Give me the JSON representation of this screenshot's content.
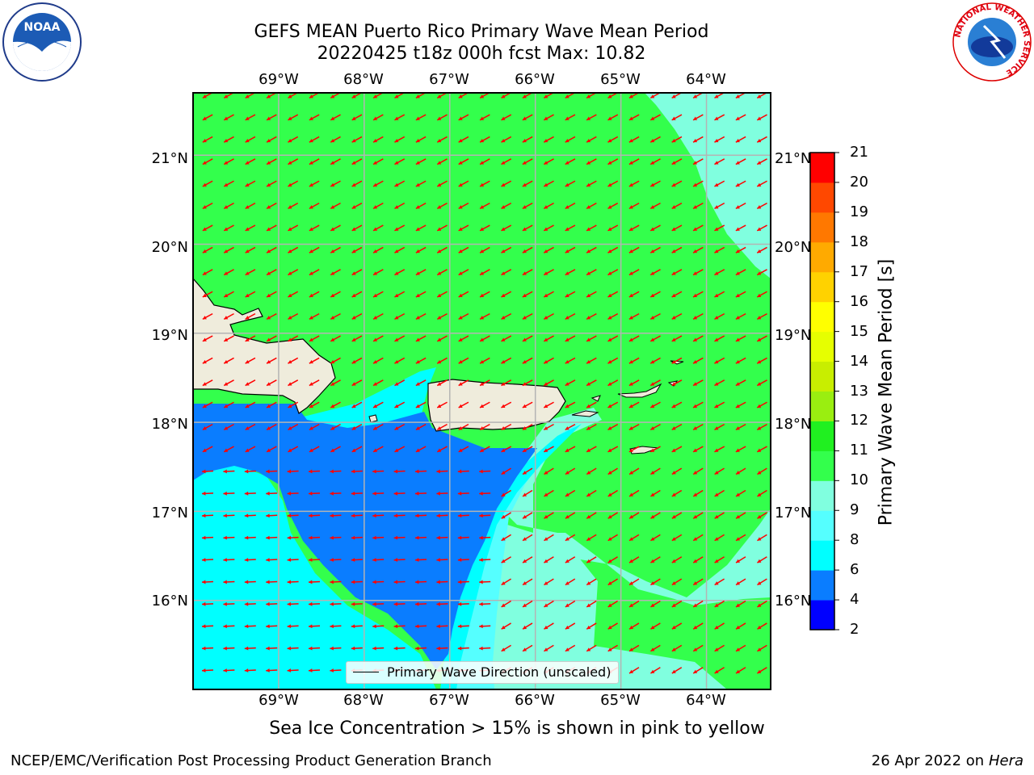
{
  "header": {
    "title_line1": "GEFS MEAN Puerto Rico Primary Wave Mean Period",
    "title_line2": "20220425 t18z 000h fcst   Max: 10.82"
  },
  "map": {
    "lon_labels": [
      "69°W",
      "68°W",
      "67°W",
      "66°W",
      "65°W",
      "64°W"
    ],
    "lat_labels": [
      "21°N",
      "20°N",
      "19°N",
      "18°N",
      "17°N",
      "16°N"
    ],
    "lon_range": [
      -70.0,
      -63.25
    ],
    "lat_range": [
      15.0,
      21.7
    ],
    "legend_label": "Primary Wave Direction (unscaled)",
    "colors": {
      "land": "#efecdc",
      "green_10_11": "#33ff4c",
      "aqua_9_10": "#80ffdf",
      "cyan_8_9": "#55ffff",
      "cyan_6_8": "#00ffff",
      "blue_4_6": "#0a7dff",
      "arrow": "#ff0000",
      "grid": "#b4b4b4"
    }
  },
  "colorbar": {
    "label": "Primary Wave Mean Period [s]",
    "ticks": [
      "2",
      "4",
      "6",
      "8",
      "9",
      "10",
      "11",
      "12",
      "13",
      "14",
      "15",
      "16",
      "17",
      "18",
      "19",
      "20",
      "21"
    ],
    "levels": [
      2,
      4,
      6,
      8,
      9,
      10,
      11,
      12,
      13,
      14,
      15,
      16,
      17,
      18,
      19,
      20,
      21
    ],
    "colors": [
      "#0000ff",
      "#0a7dff",
      "#00ffff",
      "#55ffff",
      "#80ffdf",
      "#33ff4c",
      "#20f020",
      "#9aee10",
      "#c8ee00",
      "#e6ff00",
      "#ffff00",
      "#ffd200",
      "#ffaa00",
      "#ff7800",
      "#ff4800",
      "#ff0000"
    ]
  },
  "logos": {
    "noaa_text": "NOAA",
    "nws_text": "NATIONAL WEATHER SERVICE"
  },
  "note": "Sea Ice Concentration > 15% is shown in pink to yellow",
  "footer": {
    "left": "NCEP/EMC/Verification Post Processing Product Generation Branch",
    "right_prefix": "26 Apr 2022 on ",
    "right_host": "Hera"
  }
}
